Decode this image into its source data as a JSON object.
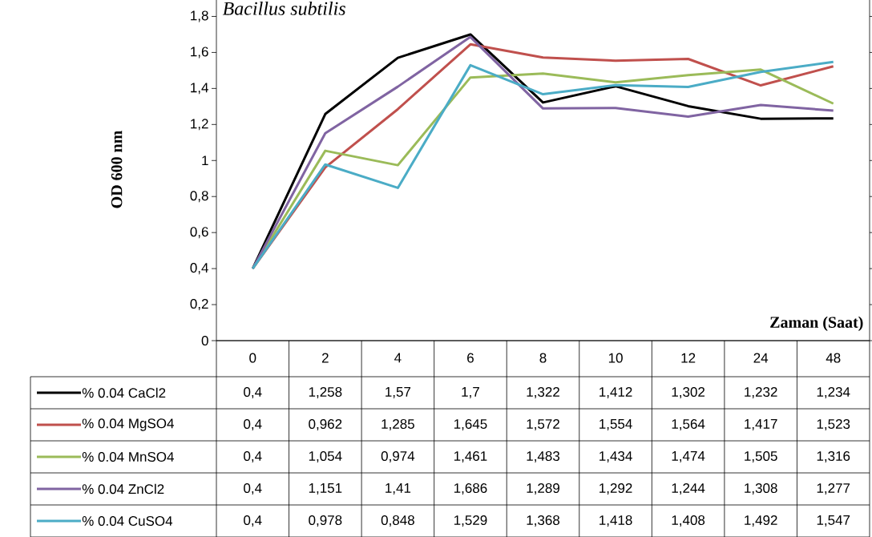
{
  "chart_data": {
    "type": "line",
    "title": "Bacillus subtilis",
    "xlabel": "Zaman (Saat)",
    "ylabel": "OD 600 nm",
    "categories": [
      "0",
      "2",
      "4",
      "6",
      "8",
      "10",
      "12",
      "24",
      "48"
    ],
    "ylim": [
      0,
      1.9
    ],
    "yticks": [
      0,
      {
        "value": 0.2,
        "label": "0,2"
      },
      {
        "value": 0.4,
        "label": "0,4"
      },
      {
        "value": 0.6,
        "label": "0,6"
      },
      {
        "value": 0.8,
        "label": "0,8"
      },
      1,
      {
        "value": 1.2,
        "label": "1,2"
      },
      {
        "value": 1.4,
        "label": "1,4"
      },
      {
        "value": 1.6,
        "label": "1,6"
      },
      {
        "value": 1.8,
        "label": "1,8"
      }
    ],
    "legend": "bottom",
    "series": [
      {
        "name": "% 0.04 CaCl2",
        "color": "#000000",
        "values": [
          0.4,
          1.258,
          1.57,
          1.7,
          1.322,
          1.412,
          1.302,
          1.232,
          1.234
        ],
        "value_labels": [
          "0,4",
          "1,258",
          "1,57",
          "1,7",
          "1,322",
          "1,412",
          "1,302",
          "1,232",
          "1,234"
        ]
      },
      {
        "name": "% 0.04 MgSO4",
        "color": "#c0504d",
        "values": [
          0.4,
          0.962,
          1.285,
          1.645,
          1.572,
          1.554,
          1.564,
          1.417,
          1.523
        ],
        "value_labels": [
          "0,4",
          "0,962",
          "1,285",
          "1,645",
          "1,572",
          "1,554",
          "1,564",
          "1,417",
          "1,523"
        ]
      },
      {
        "name": "% 0.04 MnSO4",
        "color": "#9bbb59",
        "values": [
          0.4,
          1.054,
          0.974,
          1.461,
          1.483,
          1.434,
          1.474,
          1.505,
          1.316
        ],
        "value_labels": [
          "0,4",
          "1,054",
          "0,974",
          "1,461",
          "1,483",
          "1,434",
          "1,474",
          "1,505",
          "1,316"
        ]
      },
      {
        "name": "% 0.04 ZnCl2",
        "color": "#8064a2",
        "values": [
          0.4,
          1.151,
          1.41,
          1.686,
          1.289,
          1.292,
          1.244,
          1.308,
          1.277
        ],
        "value_labels": [
          "0,4",
          "1,151",
          "1,41",
          "1,686",
          "1,289",
          "1,292",
          "1,244",
          "1,308",
          "1,277"
        ]
      },
      {
        "name": "% 0.04 CuSO4",
        "color": "#4bacc6",
        "values": [
          0.4,
          0.978,
          0.848,
          1.529,
          1.368,
          1.418,
          1.408,
          1.492,
          1.547
        ],
        "value_labels": [
          "0,4",
          "0,978",
          "0,848",
          "1,529",
          "1,368",
          "1,418",
          "1,408",
          "1,492",
          "1,547"
        ]
      }
    ]
  }
}
